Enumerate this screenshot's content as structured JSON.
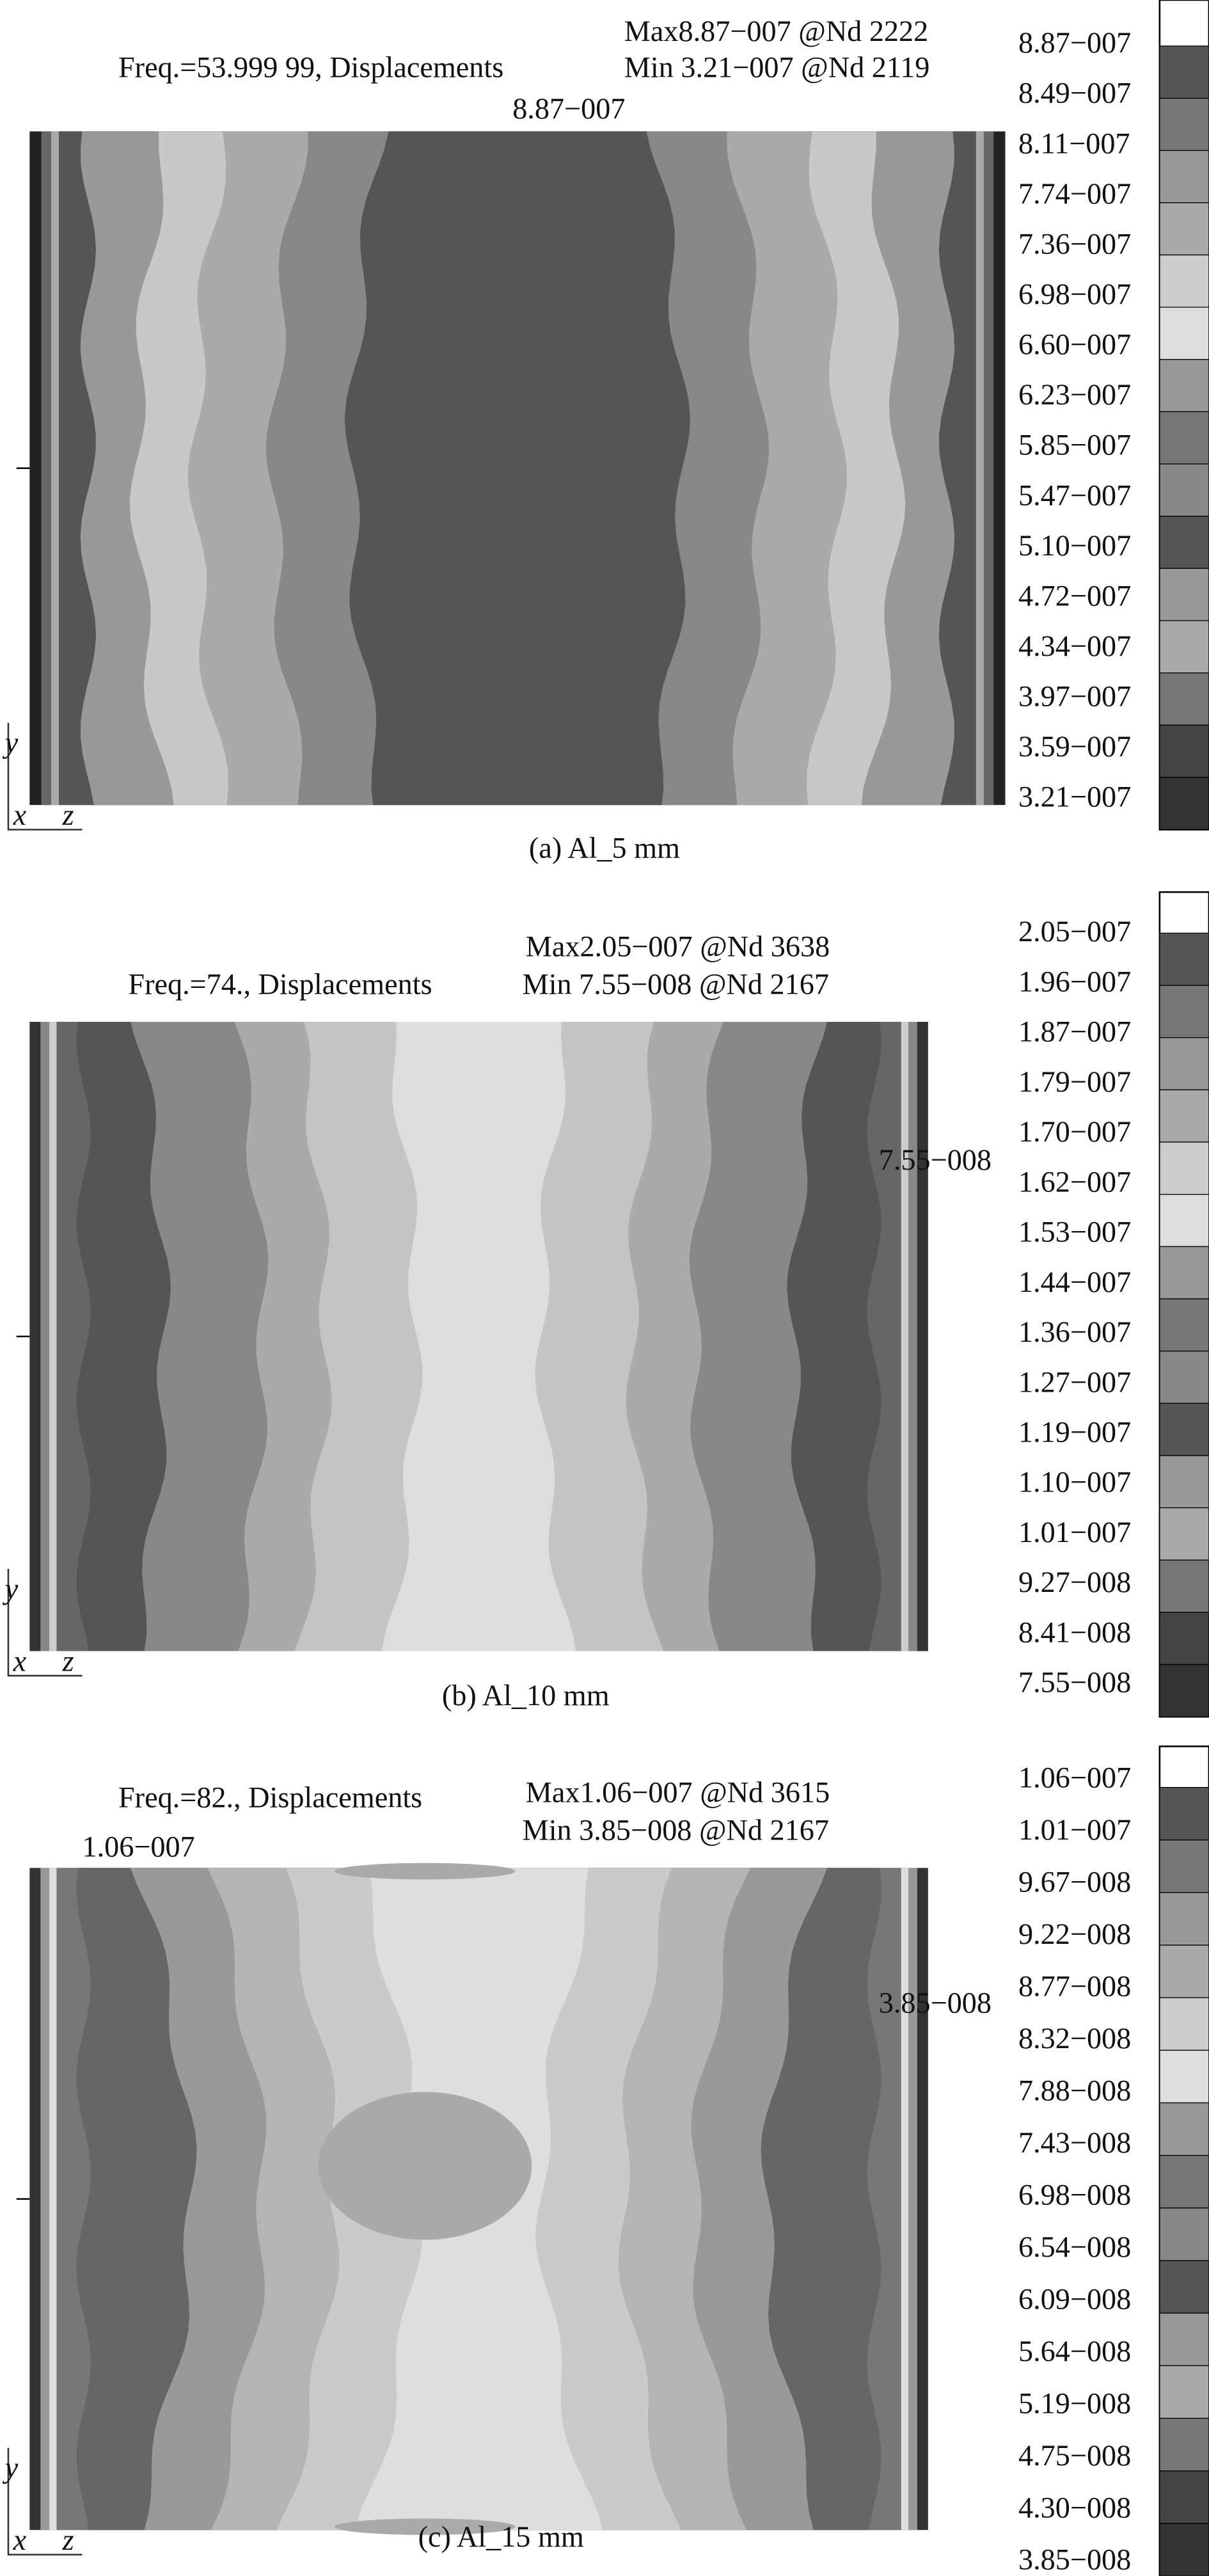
{
  "panels": [
    {
      "freq_label": "Freq.=53.999 99, Displacements",
      "max_label": "Max8.87−007 @Nd 2222",
      "min_label": "Min 3.21−007 @Nd 2119",
      "plot_labels": [
        "8.87−007"
      ],
      "axis_labels": {
        "y": "y",
        "x": "x",
        "z": "z"
      },
      "legend_labels": [
        "8.87−007",
        "8.49−007",
        "8.11−007",
        "7.74−007",
        "7.36−007",
        "6.98−007",
        "6.60−007",
        "6.23−007",
        "5.85−007",
        "5.47−007",
        "5.10−007",
        "4.72−007",
        "4.34−007",
        "3.97−007",
        "3.59−007",
        "3.21−007"
      ],
      "caption": "(a) Al_5 mm"
    },
    {
      "freq_label": "Freq.=74., Displacements",
      "max_label": "Max2.05−007 @Nd 3638",
      "min_label": "Min 7.55−008 @Nd 2167",
      "plot_labels": [
        "7.55−008"
      ],
      "axis_labels": {
        "y": "y",
        "x": "x",
        "z": "z"
      },
      "legend_labels": [
        "2.05−007",
        "1.96−007",
        "1.87−007",
        "1.79−007",
        "1.70−007",
        "1.62−007",
        "1.53−007",
        "1.44−007",
        "1.36−007",
        "1.27−007",
        "1.19−007",
        "1.10−007",
        "1.01−007",
        "9.27−008",
        "8.41−008",
        "7.55−008"
      ],
      "caption": "(b) Al_10 mm"
    },
    {
      "freq_label": "Freq.=82., Displacements",
      "max_label": "Max1.06−007 @Nd 3615",
      "min_label": "Min 3.85−008 @Nd 2167",
      "plot_labels": [
        "1.06−007",
        "3.85−008"
      ],
      "axis_labels": {
        "y": "y",
        "x": "x",
        "z": "z"
      },
      "legend_labels": [
        "1.06−007",
        "1.01−007",
        "9.67−008",
        "9.22−008",
        "8.77−008",
        "8.32−008",
        "7.88−008",
        "7.43−008",
        "6.98−008",
        "6.54−008",
        "6.09−008",
        "5.64−008",
        "5.19−008",
        "4.75−008",
        "4.30−008",
        "3.85−008"
      ],
      "caption": "(c) Al_15 mm"
    }
  ]
}
